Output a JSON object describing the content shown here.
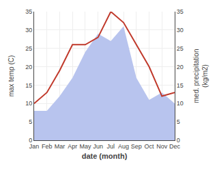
{
  "chart_data": {
    "type": "line",
    "xlabel": "date (month)",
    "ylabel": "max temp (C)",
    "y2label": "med. precipitation\n(kg/m2)",
    "categories": [
      "Jan",
      "Feb",
      "Mar",
      "Apr",
      "May",
      "Jun",
      "Jul",
      "Aug",
      "Sep",
      "Oct",
      "Nov",
      "Dec"
    ],
    "series": [
      {
        "type": "line",
        "color": "#c0392b",
        "values": [
          10,
          13,
          19,
          26,
          26,
          28,
          35,
          32,
          26,
          20,
          12,
          13
        ]
      },
      {
        "type": "area",
        "color": "#b8c4ee",
        "axis": "y2",
        "values": [
          8,
          8,
          12,
          17,
          24,
          29,
          27,
          31,
          17,
          11,
          13,
          10
        ]
      }
    ],
    "ylim": [
      0,
      35
    ],
    "yticks": [
      0,
      5,
      10,
      15,
      20,
      25,
      30,
      35
    ],
    "y2lim": [
      0,
      35
    ],
    "y2ticks": [
      0,
      5,
      10,
      15,
      20,
      25,
      30,
      35
    ],
    "grid": true
  }
}
